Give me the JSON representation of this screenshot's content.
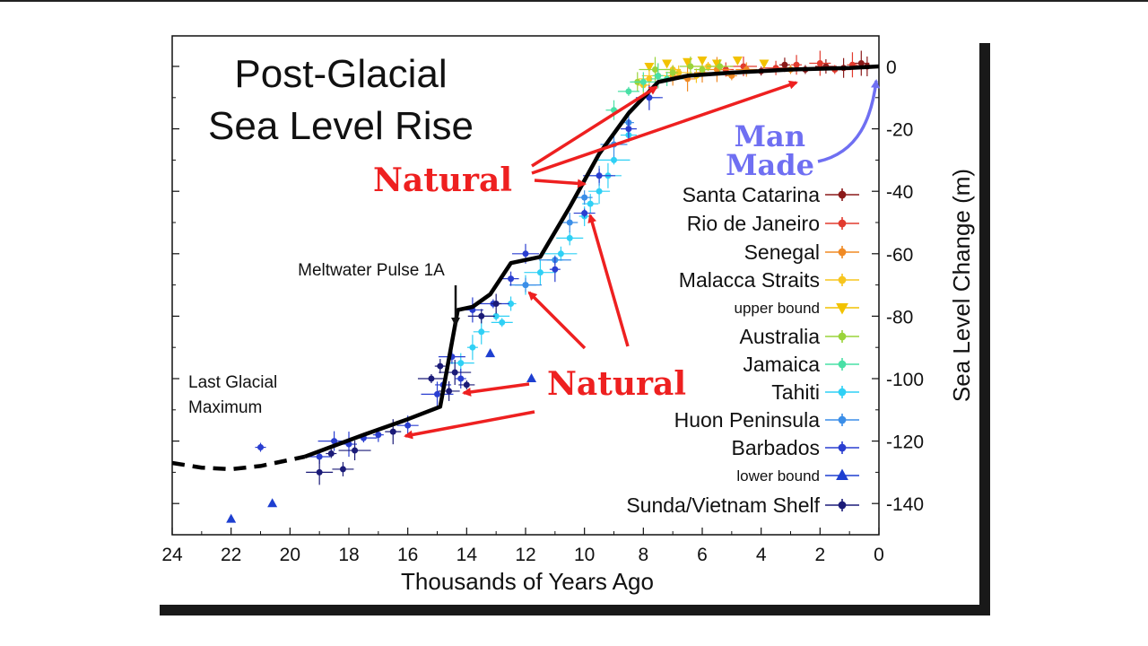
{
  "chart_data": {
    "type": "scatter",
    "title": "Post-Glacial",
    "subtitle": "Sea Level Rise",
    "xlabel": "Thousands of Years Ago",
    "ylabel": "Sea Level Change (m)",
    "xlim": [
      24,
      0
    ],
    "ylim": [
      -150,
      5
    ],
    "x_ticks": [
      "24",
      "22",
      "20",
      "18",
      "16",
      "14",
      "12",
      "10",
      "8",
      "6",
      "4",
      "2",
      "0"
    ],
    "y_ticks": [
      "0",
      "-20",
      "-40",
      "-60",
      "-80",
      "-100",
      "-120",
      "-140"
    ],
    "grid": false,
    "curve": {
      "x": [
        19.5,
        17.5,
        16.0,
        14.9,
        14.3,
        13.8,
        13.2,
        12.5,
        11.5,
        10.5,
        9.5,
        8.5,
        7.5,
        6.5,
        5.0,
        3.0,
        1.0,
        0
      ],
      "y": [
        -125,
        -118,
        -113,
        -109,
        -78,
        -77,
        -73,
        -63,
        -61,
        -45,
        -28,
        -15,
        -5,
        -3,
        -2,
        -1,
        -0.5,
        0
      ]
    },
    "dashed_curve": {
      "x": [
        24.0,
        23.0,
        22.0,
        21.0,
        19.5
      ],
      "y": [
        -127,
        -128.5,
        -129,
        -128,
        -125
      ]
    },
    "series": [
      {
        "name": "Santa Catarina",
        "color": "#8b1a1a",
        "marker": "dot",
        "x": [
          2.5,
          1.8,
          1.2,
          0.6,
          4.0,
          3.2,
          0.4
        ],
        "y": [
          -1,
          0,
          -0.5,
          1,
          -1.5,
          0.5,
          0
        ]
      },
      {
        "name": "Rio de Janeiro",
        "color": "#e23b2e",
        "marker": "dot",
        "x": [
          3.5,
          2.8,
          2.0,
          1.5,
          5.2,
          4.6,
          0.9
        ],
        "y": [
          -0.5,
          0.5,
          1,
          -1,
          -1,
          0,
          0.5
        ]
      },
      {
        "name": "Senegal",
        "color": "#f08a24",
        "marker": "dot",
        "x": [
          6.0,
          5.5,
          5.0,
          4.5,
          7.0,
          6.5,
          3.0
        ],
        "y": [
          -2,
          -1,
          -3,
          -1,
          -3,
          -4,
          -1
        ]
      },
      {
        "name": "Malacca Straits",
        "color": "#f7c51e",
        "marker": "dot",
        "x": [
          7.5,
          7.0,
          6.8,
          8.0,
          7.8,
          5.8,
          6.2
        ],
        "y": [
          -3,
          -1,
          -2,
          -6,
          -4,
          0,
          -3
        ]
      },
      {
        "name": "upper bound",
        "color": "#f2c200",
        "marker": "tri-down",
        "x": [
          7.2,
          6.5,
          5.5,
          4.8,
          3.9,
          7.8,
          6.0
        ],
        "y": [
          1,
          1.5,
          1,
          2,
          1,
          0,
          2
        ]
      },
      {
        "name": "Australia",
        "color": "#9ad43a",
        "marker": "dot",
        "x": [
          7.0,
          6.4,
          7.6,
          6.0,
          5.4,
          8.2
        ],
        "y": [
          -2,
          0,
          -1,
          -1,
          0,
          -5
        ]
      },
      {
        "name": "Jamaica",
        "color": "#49e0a6",
        "marker": "dot",
        "x": [
          8.0,
          7.5,
          8.5,
          7.2,
          9.0
        ],
        "y": [
          -5,
          -3,
          -8,
          -4,
          -14
        ]
      },
      {
        "name": "Tahiti",
        "color": "#2fd0f5",
        "marker": "dot",
        "x": [
          13.5,
          13.0,
          12.5,
          12.0,
          11.5,
          11.0,
          10.5,
          10.0,
          9.5,
          9.0,
          8.5,
          14.2,
          13.8,
          12.8,
          10.8,
          9.8,
          9.2
        ],
        "y": [
          -85,
          -80,
          -76,
          -70,
          -66,
          -62,
          -55,
          -48,
          -40,
          -30,
          -22,
          -95,
          -90,
          -82,
          -60,
          -44,
          -35
        ]
      },
      {
        "name": "Huon Peninsula",
        "color": "#3b8ee8",
        "marker": "dot",
        "x": [
          11.0,
          10.0,
          9.5,
          8.5,
          7.8,
          12.0,
          10.5,
          9.0
        ],
        "y": [
          -62,
          -42,
          -35,
          -18,
          -10,
          -70,
          -50,
          -25
        ]
      },
      {
        "name": "Barbados",
        "color": "#2a3ed0",
        "marker": "dot",
        "x": [
          19.0,
          18.5,
          18.0,
          17.5,
          17.0,
          16.0,
          15.0,
          14.8,
          14.5,
          14.2,
          13.8,
          13.1,
          12.5,
          12.0,
          11.0,
          10.0,
          9.5,
          8.5,
          7.8,
          21.0
        ],
        "y": [
          -125,
          -120,
          -121,
          -119,
          -118,
          -115,
          -105,
          -102,
          -93,
          -100,
          -78,
          -76,
          -68,
          -60,
          -65,
          -47,
          -35,
          -20,
          -10,
          -122
        ]
      },
      {
        "name": "lower bound",
        "color": "#1e3fd0",
        "marker": "tri-up",
        "x": [
          22.0,
          20.6,
          13.2,
          11.8
        ],
        "y": [
          -145,
          -140,
          -92,
          -100
        ]
      },
      {
        "name": "Sunda/Vietnam Shelf",
        "color": "#1b1b78",
        "marker": "dot",
        "x": [
          19.0,
          18.6,
          18.2,
          17.8,
          16.5,
          15.2,
          14.9,
          14.6,
          14.4,
          14.0,
          13.5,
          13.0
        ],
        "y": [
          -130,
          -124,
          -129,
          -123,
          -117,
          -100,
          -96,
          -104,
          -98,
          -102,
          -80,
          -76
        ]
      }
    ],
    "annotations": {
      "last_glacial": [
        "Last Glacial",
        "Maximum"
      ],
      "meltwater": "Meltwater Pulse 1A",
      "natural": "Natural",
      "man_made": [
        "Man",
        "Made"
      ]
    },
    "legend_position": "right"
  },
  "colors": {
    "arrow_red": "#ee2020",
    "man_made_blue": "#6f6ff2",
    "curve": "#000000"
  }
}
